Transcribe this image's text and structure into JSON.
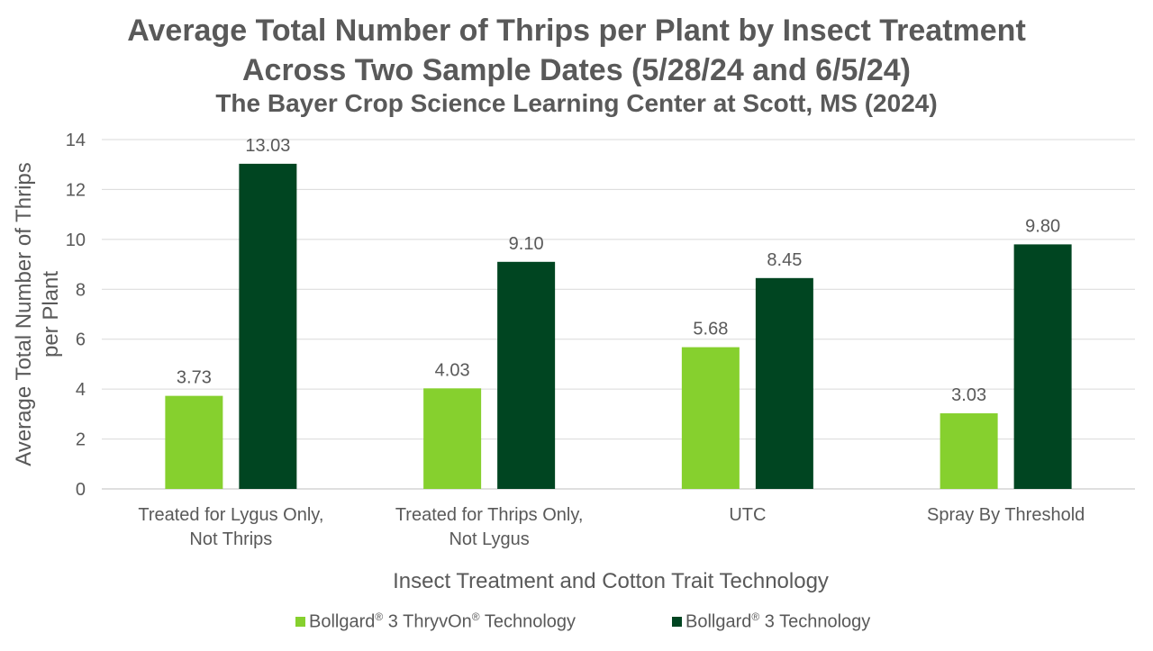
{
  "chart_data": {
    "type": "bar",
    "title_line1": "Average Total Number of Thrips per Plant by Insect Treatment",
    "title_line2": "Across Two Sample Dates (5/28/24 and 6/5/24)",
    "subtitle": "The Bayer Crop Science Learning Center at Scott, MS (2024)",
    "ylabel_line1": "Average Total Number of Thrips",
    "ylabel_line2": "per Plant",
    "xlabel": "Insect Treatment and Cotton Trait Technology",
    "ylim": [
      0,
      14
    ],
    "yticks": [
      0,
      2,
      4,
      6,
      8,
      10,
      12,
      14
    ],
    "grid": true,
    "legend_position": "bottom",
    "categories": [
      [
        "Treated for Lygus Only,",
        "Not Thrips"
      ],
      [
        "Treated for Thrips Only,",
        "Not Lygus"
      ],
      [
        "UTC"
      ],
      [
        "Spray By Threshold"
      ]
    ],
    "series": [
      {
        "name": "Bollgard® 3 ThryvOn® Technology",
        "color": "#86d02e",
        "values": [
          3.73,
          4.03,
          5.68,
          3.03
        ],
        "labels": [
          "3.73",
          "4.03",
          "5.68",
          "3.03"
        ]
      },
      {
        "name": "Bollgard® 3 Technology",
        "color": "#004521",
        "values": [
          13.03,
          9.1,
          8.45,
          9.8
        ],
        "labels": [
          "13.03",
          "9.10",
          "8.45",
          "9.80"
        ]
      }
    ]
  },
  "legend": {
    "item1": {
      "pre": "Bollgard",
      "mark1": "®",
      "mid": " 3 ThryvOn",
      "mark2": "®",
      "post": " Technology"
    },
    "item2": {
      "pre": "Bollgard",
      "mark1": "®",
      "post": " 3 Technology"
    }
  }
}
